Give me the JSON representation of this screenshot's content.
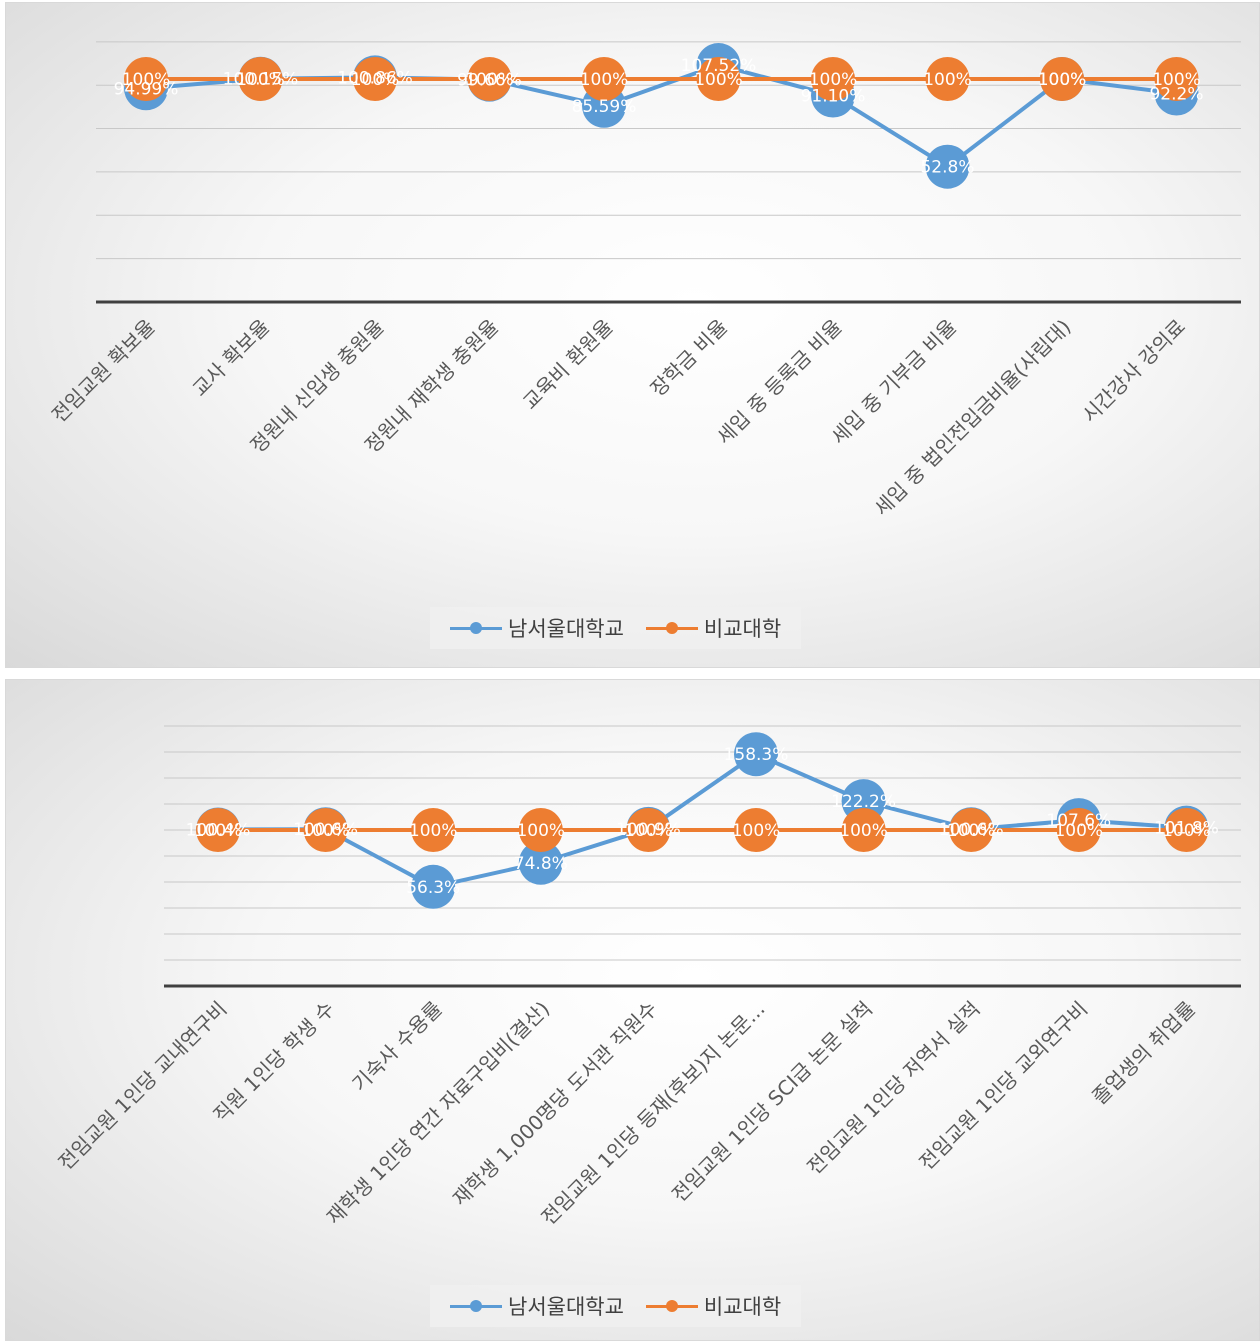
{
  "colors": {
    "series_a": "#5b9bd5",
    "series_b": "#ed7d31",
    "grid": "#c8c8c8",
    "axis": "#404040",
    "label": "#595959"
  },
  "legend": {
    "series_a": "남서울대학교",
    "series_b": "비교대학"
  },
  "chart_data": [
    {
      "type": "line",
      "categories": [
        "전임교원 확보율",
        "교사 확보율",
        "정원내 신입생 충원율",
        "정원내 재학생 충원율",
        "교육비 환원율",
        "장학금 비율",
        "세입 중 등록금 비율",
        "세입 중 기부금 비율",
        "세입 중 법인전입금비율(사립대)",
        "시간강사 강의료"
      ],
      "series": [
        {
          "name": "남서울대학교",
          "values": [
            94.99,
            100.15,
            100.86,
            99.66,
            85.59,
            107.52,
            91.1,
            52.8,
            100,
            92.2
          ],
          "labels": [
            "94.99%",
            "100.15%",
            "100.86%",
            "99.66%",
            "85.59%",
            "107.52%",
            "91.10%",
            "52.8%",
            "100%",
            "92.2%"
          ]
        },
        {
          "name": "비교대학",
          "values": [
            100,
            100,
            100,
            100,
            100,
            100,
            100,
            100,
            100,
            100
          ],
          "labels": [
            "100%",
            "100%",
            "100%",
            "100%",
            "100%",
            "100%",
            "100%",
            "100%",
            "100%",
            "100%"
          ]
        }
      ],
      "ylim": [
        -20,
        120
      ],
      "grid": true,
      "legend_position": "bottom"
    },
    {
      "type": "line",
      "categories": [
        "전임교원 1인당 교내연구비",
        "직원 1인당 학생 수",
        "기숙사 수용률",
        "재학생 1인당 연간 자료구입비(결산)",
        "재학생 1,000명당 도서관 직원수",
        "전임교원 1인당 등재(후보)지 논문...",
        "전임교원 1인당 SCI급 논문 실적",
        "전임교원 1인당 저역서 실적",
        "전임교원 1인당 교외연구비",
        "졸업생의 취업률"
      ],
      "series": [
        {
          "name": "남서울대학교",
          "values": [
            100.4,
            100.6,
            56.3,
            74.8,
            100.9,
            158.3,
            122.2,
            100.6,
            107.6,
            101.8
          ],
          "labels": [
            "100.4%",
            "100.6%",
            "56.3%",
            "74.8%",
            "100.9%",
            "158.3%",
            "122.2%",
            "100.6%",
            "107.6%",
            "101.8%"
          ]
        },
        {
          "name": "비교대학",
          "values": [
            100,
            100,
            100,
            100,
            100,
            100,
            100,
            100,
            100,
            100
          ],
          "labels": [
            "100%",
            "100%",
            "100%",
            "100%",
            "100%",
            "100%",
            "100%",
            "100%",
            "100%",
            "100%"
          ]
        }
      ],
      "ylim": [
        -20,
        180
      ],
      "grid": true,
      "legend_position": "bottom"
    }
  ]
}
